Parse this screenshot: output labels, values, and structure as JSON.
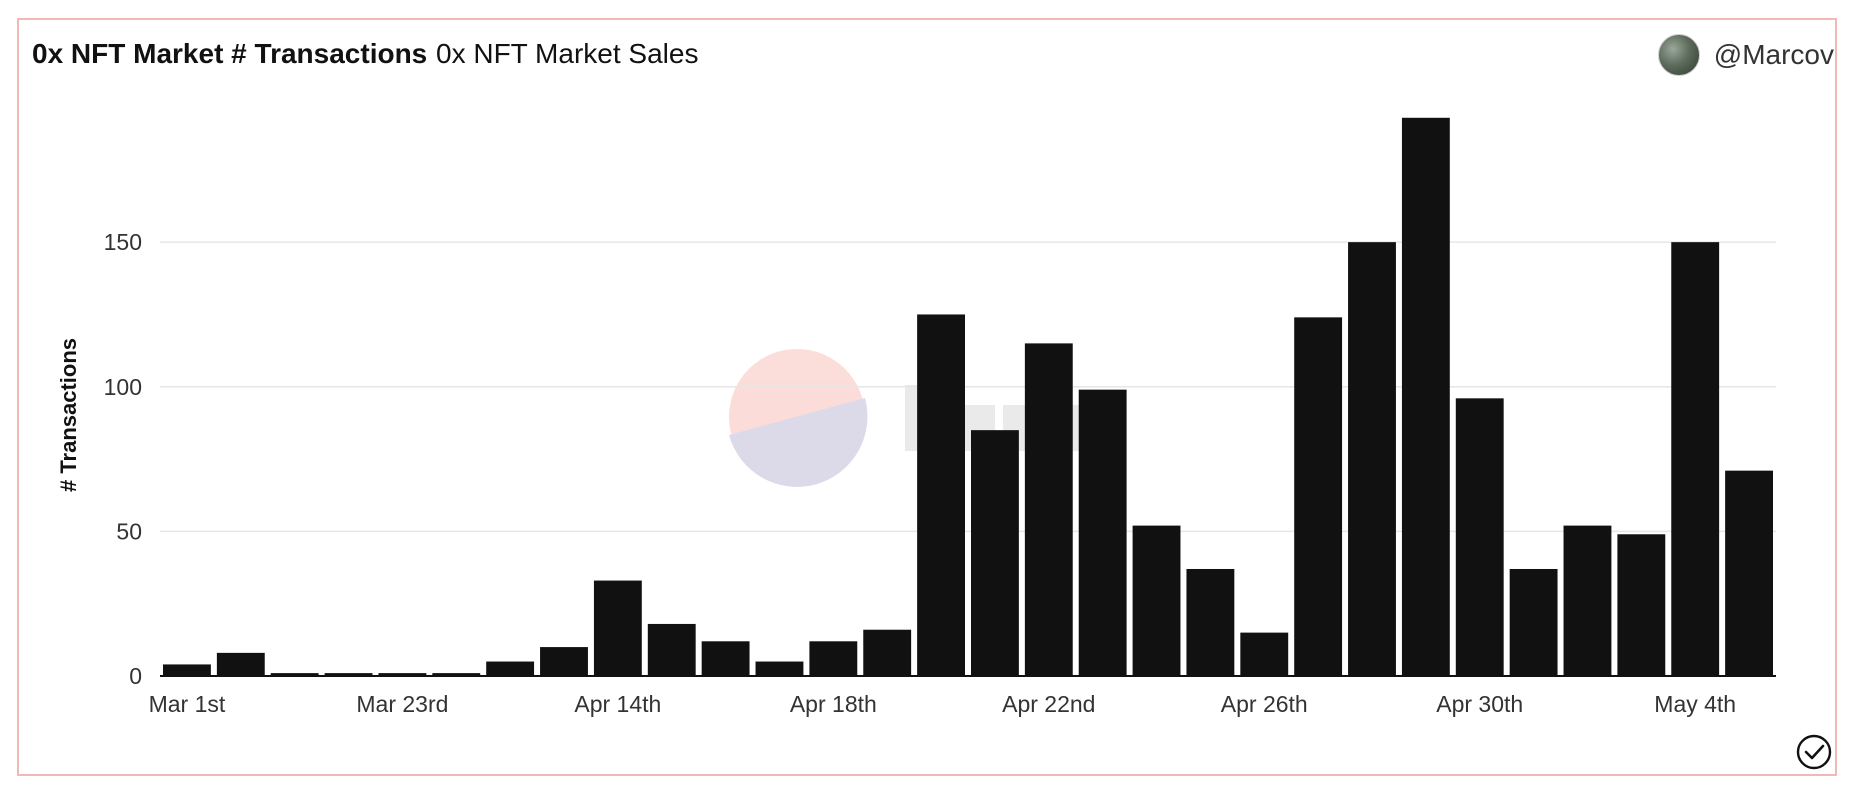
{
  "header": {
    "title": "0x NFT Market # Transactions",
    "subtitle": "0x NFT Market Sales",
    "author": "@Marcov"
  },
  "icons": {
    "avatar": "user-avatar-icon",
    "status": "check-circle-icon",
    "watermark": "dune-logo-icon"
  },
  "colors": {
    "bar": "#111111",
    "border": "#f2b8b4",
    "grid": "#e6e6e6"
  },
  "chart_data": {
    "type": "bar",
    "xlabel": "",
    "ylabel": "# Transactions",
    "ylim": [
      0,
      195
    ],
    "yticks": [
      0,
      50,
      100,
      150
    ],
    "xtick_labels": [
      "Mar 1st",
      "Mar 23rd",
      "Apr 14th",
      "Apr 18th",
      "Apr 22nd",
      "Apr 26th",
      "Apr 30th",
      "May 4th"
    ],
    "xtick_bar_index": [
      0,
      4,
      8,
      12,
      16,
      20,
      24,
      28
    ],
    "values": [
      4,
      8,
      1,
      1,
      1,
      1,
      5,
      10,
      33,
      18,
      12,
      5,
      12,
      16,
      125,
      85,
      115,
      99,
      52,
      37,
      15,
      124,
      150,
      193,
      96,
      37,
      52,
      49,
      150,
      71
    ],
    "grid": true,
    "legend": "none"
  }
}
